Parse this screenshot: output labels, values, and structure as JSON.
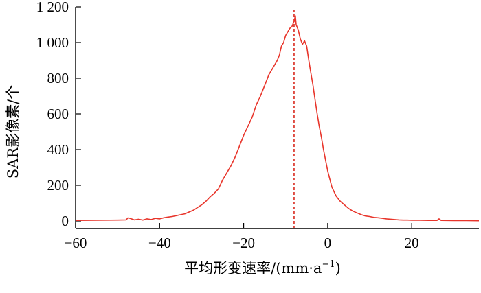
{
  "chart_data": {
    "type": "line",
    "xlabel": "平均形变速率/(mm·a",
    "xlabel_sup": "−1",
    "xlabel_end": ")",
    "ylabel": "SAR影像素/个",
    "xlim": [
      -60,
      36
    ],
    "ylim": [
      0,
      1200
    ],
    "x_ticks": [
      -60,
      -40,
      -20,
      0,
      20
    ],
    "x_tick_labels": [
      "−60",
      "−40",
      "−20",
      "0",
      "20"
    ],
    "y_ticks": [
      0,
      200,
      400,
      600,
      800,
      1000,
      1200
    ],
    "y_tick_labels": [
      "0",
      "200",
      "400",
      "600",
      "800",
      "1 000",
      "1 200"
    ],
    "grid": false,
    "line_color": "#e8352b",
    "reference_line": {
      "x": -8,
      "style": "dashed",
      "color": "#d8281d"
    },
    "series": [
      {
        "x": [
          -60,
          -55,
          -50,
          -48,
          -47.5,
          -46,
          -45,
          -44,
          -43,
          -42,
          -41,
          -40,
          -39,
          -38,
          -37,
          -36,
          -35,
          -34,
          -33,
          -32,
          -31,
          -30,
          -29,
          -28,
          -27,
          -26,
          -25,
          -24,
          -23,
          -22,
          -21,
          -20,
          -19,
          -18,
          -17,
          -16,
          -15,
          -14,
          -13,
          -12,
          -11.5,
          -11,
          -10.5,
          -10,
          -9.5,
          -9,
          -8.5,
          -8,
          -7.7,
          -7.5,
          -7,
          -6.5,
          -6,
          -5.5,
          -5,
          -4.5,
          -4,
          -3.5,
          -3,
          -2.5,
          -2,
          -1.5,
          -1,
          0,
          1,
          2,
          3,
          4,
          5,
          6,
          7,
          8,
          9,
          10,
          11,
          12,
          13,
          14,
          15,
          16,
          17,
          18,
          19,
          20,
          22,
          24,
          26,
          26.5,
          27,
          30,
          33,
          36
        ],
        "y": [
          3,
          4,
          5,
          6,
          18,
          6,
          10,
          5,
          12,
          8,
          15,
          12,
          18,
          22,
          25,
          30,
          35,
          40,
          50,
          60,
          75,
          90,
          110,
          135,
          155,
          180,
          230,
          270,
          310,
          360,
          420,
          480,
          530,
          580,
          650,
          700,
          760,
          820,
          860,
          900,
          930,
          980,
          1000,
          1040,
          1060,
          1080,
          1090,
          1120,
          1150,
          1100,
          1070,
          1020,
          990,
          1010,
          980,
          900,
          830,
          760,
          680,
          600,
          530,
          470,
          400,
          280,
          190,
          140,
          110,
          90,
          70,
          55,
          45,
          35,
          28,
          25,
          20,
          18,
          15,
          12,
          10,
          8,
          6,
          5,
          5,
          4,
          4,
          3,
          3,
          12,
          3,
          2,
          2,
          1
        ]
      }
    ]
  }
}
